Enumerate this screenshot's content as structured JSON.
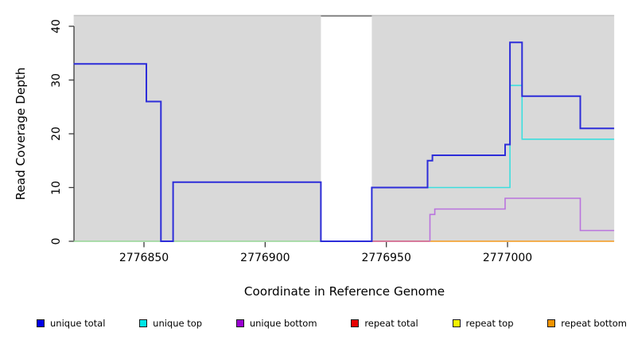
{
  "chart_data": {
    "type": "line",
    "subtype": "step-coverage-plot",
    "title": "",
    "xlabel": "Coordinate in Reference Genome",
    "ylabel": "Read Coverage Depth",
    "xlim": [
      2776821,
      2777044
    ],
    "ylim": [
      0,
      42
    ],
    "grid": false,
    "panel_color": "#d9d9d9",
    "panel_top_border_color": "#c4c4c4",
    "gap_top_border_color": "#8e8e8e",
    "shaded_regions": [
      [
        2776821,
        2776923
      ],
      [
        2776944,
        2777044
      ]
    ],
    "gap_region": [
      2776923,
      2776944
    ],
    "x_ticks": [
      {
        "value": 2776850,
        "label": "2776850"
      },
      {
        "value": 2776900,
        "label": "2776900"
      },
      {
        "value": 2776950,
        "label": "2776950"
      },
      {
        "value": 2777000,
        "label": "2777000"
      }
    ],
    "y_ticks": [
      {
        "value": 0,
        "label": "0"
      },
      {
        "value": 10,
        "label": "10"
      },
      {
        "value": 20,
        "label": "20"
      },
      {
        "value": 30,
        "label": "30"
      },
      {
        "value": 40,
        "label": "40"
      }
    ],
    "series": [
      {
        "name": "zero-baseline-left-overlap",
        "color": "#96d696",
        "width": 1.5,
        "steps": [
          [
            2776821,
            0
          ],
          [
            2776923,
            0
          ]
        ]
      },
      {
        "name": "zero-baseline-mid-overlap",
        "color": "#cf5580",
        "width": 1.5,
        "steps": [
          [
            2776944,
            0
          ],
          [
            2776968,
            0
          ]
        ]
      },
      {
        "name": "repeat bottom",
        "color": "#f59a1d",
        "width": 1.6,
        "steps": [
          [
            2776968,
            0
          ],
          [
            2777044,
            0
          ]
        ]
      },
      {
        "name": "unique top",
        "color": "#3cdede",
        "width": 1.6,
        "steps": [
          [
            2776944,
            0
          ],
          [
            2776944,
            10
          ],
          [
            2777001,
            29
          ],
          [
            2777006,
            19
          ],
          [
            2777044,
            19
          ]
        ]
      },
      {
        "name": "unique bottom",
        "color": "#b973de",
        "width": 1.6,
        "steps": [
          [
            2776968,
            0
          ],
          [
            2776968,
            5
          ],
          [
            2776970,
            6
          ],
          [
            2776999,
            8
          ],
          [
            2777030,
            2
          ],
          [
            2777044,
            2
          ]
        ]
      },
      {
        "name": "unique total",
        "color": "#2d2dd9",
        "width": 2,
        "steps": [
          [
            2776821,
            33
          ],
          [
            2776851,
            26
          ],
          [
            2776857,
            0
          ],
          [
            2776862,
            11
          ],
          [
            2776923,
            0
          ],
          [
            2776944,
            10
          ],
          [
            2776967,
            15
          ],
          [
            2776969,
            16
          ],
          [
            2776999,
            18
          ],
          [
            2777001,
            37
          ],
          [
            2777006,
            27
          ],
          [
            2777030,
            21
          ],
          [
            2777044,
            21
          ]
        ]
      }
    ],
    "legend_position": "bottom"
  },
  "legend": {
    "items": [
      {
        "label": "unique total",
        "color": "#0000e6"
      },
      {
        "label": "unique top",
        "color": "#00e5e5"
      },
      {
        "label": "unique bottom",
        "color": "#9a00d1"
      },
      {
        "label": "repeat total",
        "color": "#e60000"
      },
      {
        "label": "repeat top",
        "color": "#f2f200"
      },
      {
        "label": "repeat bottom",
        "color": "#f09300"
      }
    ]
  }
}
